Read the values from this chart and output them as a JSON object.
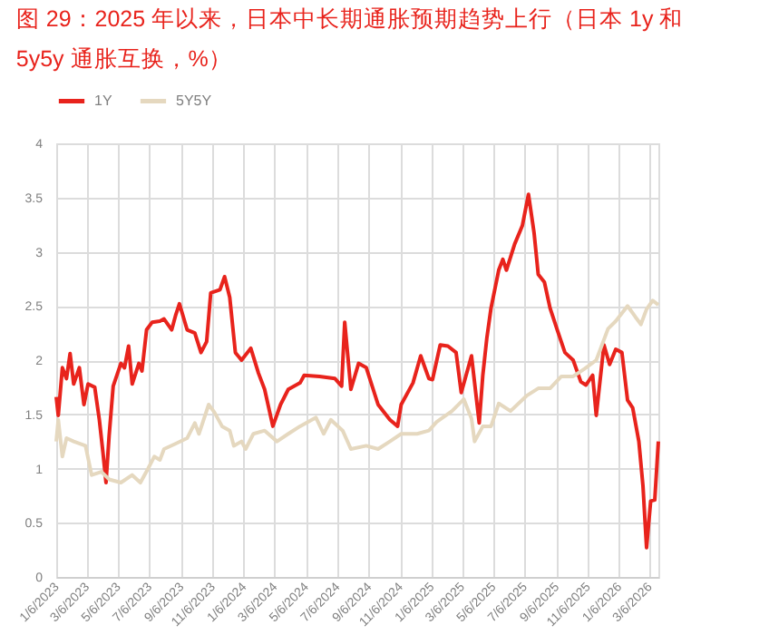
{
  "chart_data": {
    "type": "line",
    "title": "图 29：2025 年以来，日本中长期通胀预期趋势上行（日本 1y 和 5y5y 通胀互换，%）",
    "xlim": [
      "2023-01-06",
      "2026-03-24"
    ],
    "xticks": [
      {
        "value": "2023-01-06",
        "label": "1/6/2023"
      },
      {
        "value": "2023-03-06",
        "label": "3/6/2023"
      },
      {
        "value": "2023-05-06",
        "label": "5/6/2023"
      },
      {
        "value": "2023-07-06",
        "label": "7/6/2023"
      },
      {
        "value": "2023-09-06",
        "label": "9/6/2023"
      },
      {
        "value": "2023-11-06",
        "label": "11/6/2023"
      },
      {
        "value": "2024-01-06",
        "label": "1/6/2024"
      },
      {
        "value": "2024-03-06",
        "label": "3/6/2024"
      },
      {
        "value": "2024-05-06",
        "label": "5/6/2024"
      },
      {
        "value": "2024-07-06",
        "label": "7/6/2024"
      },
      {
        "value": "2024-09-06",
        "label": "9/6/2024"
      },
      {
        "value": "2024-11-06",
        "label": "11/6/2024"
      },
      {
        "value": "2025-01-06",
        "label": "1/6/2025"
      },
      {
        "value": "2025-03-06",
        "label": "3/6/2025"
      },
      {
        "value": "2025-05-06",
        "label": "5/6/2025"
      },
      {
        "value": "2025-07-06",
        "label": "7/6/2025"
      },
      {
        "value": "2025-09-06",
        "label": "9/6/2025"
      },
      {
        "value": "2025-11-06",
        "label": "11/6/2025"
      },
      {
        "value": "2026-01-06",
        "label": "1/6/2026"
      },
      {
        "value": "2026-03-06",
        "label": "3/6/2026"
      }
    ],
    "ylim": [
      0,
      4
    ],
    "yticks": [
      0,
      0.5,
      1,
      1.5,
      2,
      2.5,
      3,
      3.5,
      4
    ],
    "grid": true,
    "legend": "top",
    "line_style": "solid",
    "marker": "none",
    "series": [
      {
        "name": "1Y",
        "color": "#e8231c",
        "x": [
          "2023-01-06",
          "2023-01-10",
          "2023-01-18",
          "2023-01-26",
          "2023-02-02",
          "2023-02-09",
          "2023-02-20",
          "2023-03-01",
          "2023-03-09",
          "2023-03-22",
          "2023-03-31",
          "2023-04-07",
          "2023-04-13",
          "2023-04-19",
          "2023-04-27",
          "2023-05-12",
          "2023-05-19",
          "2023-05-27",
          "2023-06-03",
          "2023-06-16",
          "2023-06-22",
          "2023-07-01",
          "2023-07-12",
          "2023-07-27",
          "2023-08-04",
          "2023-08-19",
          "2023-08-27",
          "2023-09-03",
          "2023-09-18",
          "2023-10-03",
          "2023-10-15",
          "2023-10-26",
          "2023-11-03",
          "2023-11-21",
          "2023-11-30",
          "2023-12-10",
          "2023-12-21",
          "2024-01-02",
          "2024-01-20",
          "2024-02-04",
          "2024-02-16",
          "2024-03-03",
          "2024-03-18",
          "2024-04-02",
          "2024-04-25",
          "2024-05-03",
          "2024-06-02",
          "2024-07-02",
          "2024-07-15",
          "2024-07-21",
          "2024-08-02",
          "2024-08-17",
          "2024-09-01",
          "2024-09-24",
          "2024-10-17",
          "2024-11-01",
          "2024-11-08",
          "2024-12-01",
          "2024-12-16",
          "2025-01-01",
          "2025-01-08",
          "2025-01-23",
          "2025-02-07",
          "2025-02-23",
          "2025-03-05",
          "2025-03-25",
          "2025-04-09",
          "2025-04-16",
          "2025-04-24",
          "2025-05-02",
          "2025-05-17",
          "2025-05-25",
          "2025-06-01",
          "2025-06-17",
          "2025-07-02",
          "2025-07-14",
          "2025-07-25",
          "2025-08-02",
          "2025-08-14",
          "2025-08-25",
          "2025-09-08",
          "2025-09-23",
          "2025-10-09",
          "2025-10-24",
          "2025-11-03",
          "2025-11-16",
          "2025-11-23",
          "2025-12-08",
          "2025-12-19",
          "2025-12-31",
          "2026-01-12",
          "2026-01-23",
          "2026-02-02",
          "2026-02-14",
          "2026-02-22",
          "2026-03-01",
          "2026-03-09",
          "2026-03-17",
          "2026-03-24"
        ],
        "values": [
          1.66,
          1.49,
          1.93,
          1.83,
          2.06,
          1.78,
          1.93,
          1.59,
          1.78,
          1.75,
          1.45,
          1.15,
          0.87,
          1.3,
          1.76,
          1.97,
          1.93,
          2.13,
          1.78,
          1.97,
          1.9,
          2.28,
          2.35,
          2.36,
          2.38,
          2.28,
          2.42,
          2.52,
          2.28,
          2.25,
          2.07,
          2.17,
          2.62,
          2.65,
          2.77,
          2.58,
          2.07,
          2.0,
          2.11,
          1.88,
          1.73,
          1.39,
          1.59,
          1.73,
          1.79,
          1.86,
          1.85,
          1.83,
          1.76,
          2.35,
          1.73,
          1.97,
          1.93,
          1.59,
          1.45,
          1.39,
          1.59,
          1.79,
          2.04,
          1.83,
          1.82,
          2.14,
          2.13,
          2.07,
          1.7,
          2.04,
          1.42,
          1.86,
          2.21,
          2.48,
          2.83,
          2.93,
          2.83,
          3.07,
          3.24,
          3.53,
          3.17,
          2.79,
          2.72,
          2.48,
          2.28,
          2.07,
          2.0,
          1.8,
          1.77,
          1.86,
          1.49,
          2.14,
          1.96,
          2.1,
          2.07,
          1.63,
          1.56,
          1.25,
          0.84,
          0.27,
          0.7,
          0.71,
          1.25
        ]
      },
      {
        "name": "5Y5Y",
        "color": "#e5d8bf",
        "x": [
          "2023-01-06",
          "2023-01-10",
          "2023-01-18",
          "2023-01-26",
          "2023-02-09",
          "2023-03-04",
          "2023-03-16",
          "2023-04-04",
          "2023-04-19",
          "2023-05-12",
          "2023-06-03",
          "2023-06-19",
          "2023-07-04",
          "2023-07-16",
          "2023-07-27",
          "2023-08-04",
          "2023-08-27",
          "2023-09-18",
          "2023-10-03",
          "2023-10-11",
          "2023-10-30",
          "2023-11-10",
          "2023-11-25",
          "2023-12-10",
          "2023-12-18",
          "2024-01-02",
          "2024-01-10",
          "2024-01-25",
          "2024-02-16",
          "2024-03-11",
          "2024-04-02",
          "2024-04-25",
          "2024-05-26",
          "2024-06-10",
          "2024-06-24",
          "2024-07-17",
          "2024-08-02",
          "2024-09-01",
          "2024-09-24",
          "2024-10-17",
          "2024-11-08",
          "2024-12-09",
          "2025-01-01",
          "2025-01-16",
          "2025-02-15",
          "2025-03-10",
          "2025-03-25",
          "2025-03-31",
          "2025-04-16",
          "2025-05-02",
          "2025-05-17",
          "2025-06-09",
          "2025-07-10",
          "2025-08-02",
          "2025-08-25",
          "2025-09-16",
          "2025-10-09",
          "2025-10-31",
          "2025-11-23",
          "2025-12-01",
          "2025-12-16",
          "2025-12-31",
          "2026-01-23",
          "2026-02-07",
          "2026-02-18",
          "2026-03-01",
          "2026-03-13",
          "2026-03-24"
        ],
        "values": [
          1.25,
          1.45,
          1.11,
          1.28,
          1.25,
          1.21,
          0.94,
          0.97,
          0.9,
          0.87,
          0.94,
          0.87,
          1.0,
          1.11,
          1.08,
          1.18,
          1.23,
          1.28,
          1.42,
          1.32,
          1.59,
          1.52,
          1.39,
          1.35,
          1.21,
          1.25,
          1.18,
          1.32,
          1.35,
          1.25,
          1.32,
          1.39,
          1.47,
          1.32,
          1.45,
          1.35,
          1.18,
          1.21,
          1.18,
          1.25,
          1.32,
          1.32,
          1.35,
          1.43,
          1.53,
          1.64,
          1.46,
          1.25,
          1.39,
          1.39,
          1.6,
          1.53,
          1.67,
          1.74,
          1.74,
          1.85,
          1.85,
          1.92,
          2.0,
          2.1,
          2.29,
          2.36,
          2.5,
          2.4,
          2.33,
          2.47,
          2.55,
          2.51
        ]
      }
    ]
  }
}
